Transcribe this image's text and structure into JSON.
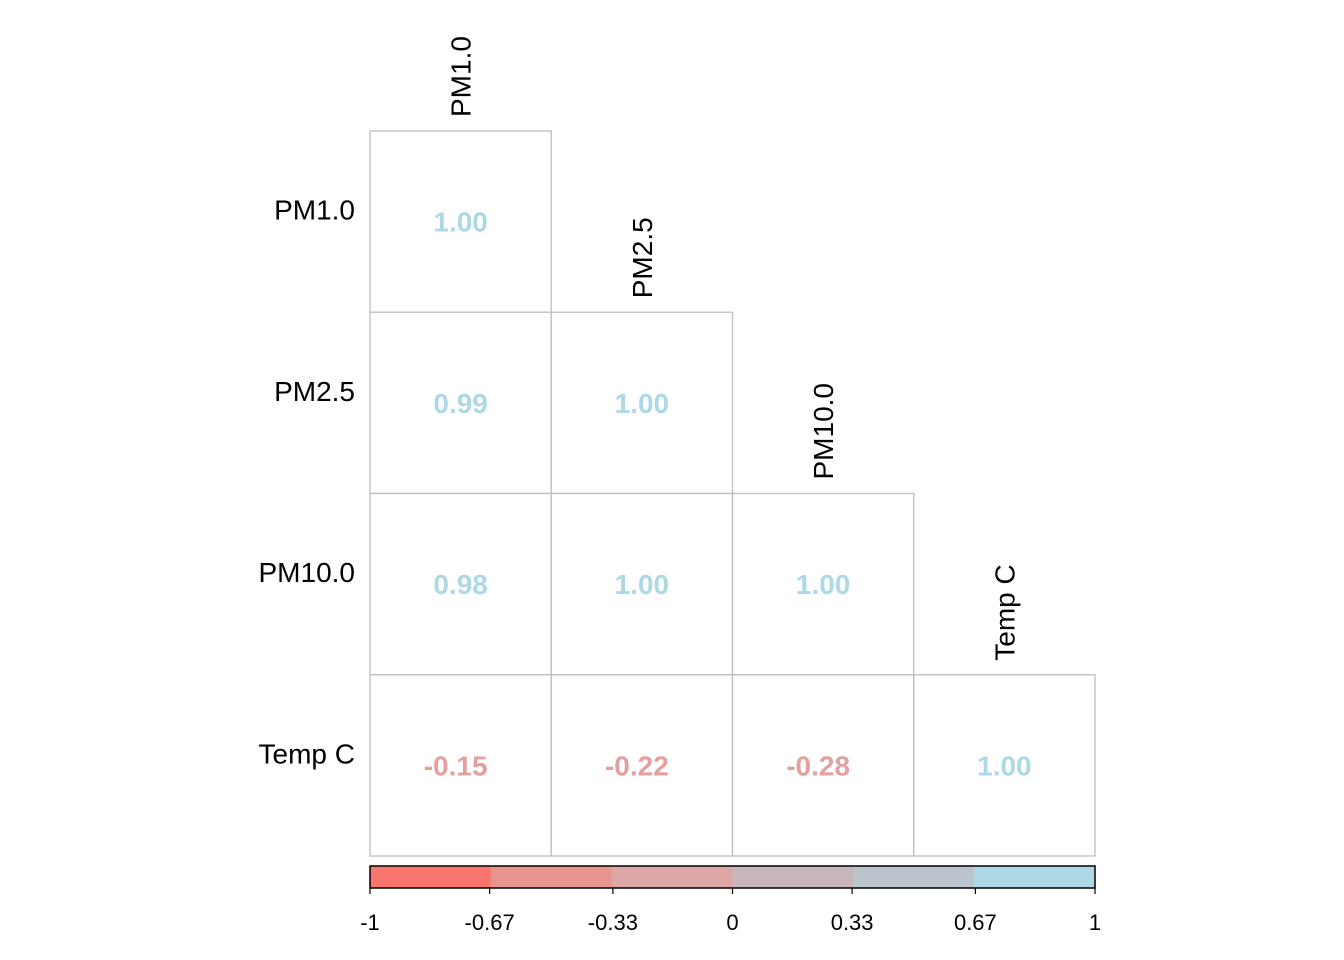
{
  "chart_data": {
    "type": "heatmap",
    "variables": [
      "PM1.0",
      "PM2.5",
      "PM10.0",
      "Temp C"
    ],
    "matrix": [
      [
        "1.00",
        null,
        null,
        null
      ],
      [
        "0.99",
        "1.00",
        null,
        null
      ],
      [
        "0.98",
        "1.00",
        "1.00",
        null
      ],
      [
        "-0.15",
        "-0.22",
        "-0.28",
        "1.00"
      ]
    ],
    "colorbar": {
      "ticks": [
        "-1",
        "-0.67",
        "-0.33",
        "0",
        "0.33",
        "0.67",
        "1"
      ],
      "limits": [
        -1,
        1
      ],
      "colors": [
        "#F8766D",
        "#E8958F",
        "#DCA7A5",
        "#C9B6BB",
        "#BAC4CC",
        "#ADD8E6"
      ],
      "placement": "bottom"
    },
    "value_colors": {
      "positive": "#ADD8E6",
      "negative": "#E3A09E"
    },
    "grid_color": "#BEBEBE",
    "layout": "lower-triangle"
  }
}
